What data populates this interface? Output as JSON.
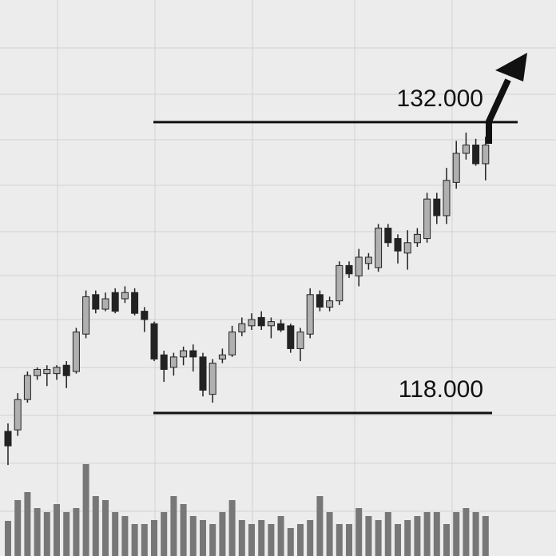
{
  "chart_data": {
    "type": "candlestick",
    "open": [
      117.12,
      117.19,
      118.65,
      119.8,
      119.9,
      119.9,
      120.3,
      120.0,
      121.8,
      123.7,
      123.0,
      123.8,
      123.5,
      123.8,
      122.9,
      122.3,
      120.8,
      120.2,
      120.7,
      121.0,
      120.7,
      118.9,
      120.6,
      120.8,
      121.9,
      122.2,
      122.6,
      122.2,
      122.3,
      122.2,
      121.1,
      121.8,
      123.7,
      123.1,
      123.4,
      125.1,
      124.6,
      125.2,
      125.0,
      126.9,
      126.4,
      125.7,
      126.2,
      126.4,
      128.3,
      127.5,
      129.1,
      130.5,
      130.9,
      130.0
    ],
    "high": [
      117.5,
      118.96,
      120.0,
      120.2,
      120.3,
      120.3,
      120.5,
      122.1,
      123.9,
      123.9,
      123.8,
      124.0,
      124.1,
      124.0,
      123.1,
      122.4,
      121.0,
      120.9,
      121.2,
      121.3,
      120.9,
      120.6,
      121.1,
      122.2,
      122.6,
      122.8,
      122.9,
      122.6,
      122.5,
      122.3,
      122.1,
      124.0,
      123.9,
      123.6,
      125.3,
      125.3,
      125.9,
      125.7,
      127.1,
      127.1,
      126.6,
      126.8,
      126.9,
      128.6,
      128.6,
      129.8,
      131.1,
      131.5,
      131.2,
      131.3
    ],
    "low": [
      115.5,
      116.9,
      118.5,
      119.6,
      119.3,
      119.6,
      119.2,
      119.9,
      121.6,
      122.8,
      122.9,
      122.8,
      123.3,
      122.7,
      121.9,
      120.5,
      119.5,
      119.8,
      120.3,
      120.0,
      118.8,
      118.5,
      120.4,
      120.7,
      121.7,
      122.0,
      122.0,
      121.6,
      121.9,
      120.9,
      120.5,
      121.6,
      122.9,
      122.9,
      123.2,
      124.5,
      124.1,
      124.9,
      124.8,
      126.0,
      125.2,
      124.9,
      126.0,
      126.2,
      127.1,
      127.1,
      128.8,
      130.2,
      129.9,
      129.2
    ],
    "close": [
      116.42,
      118.65,
      119.81,
      120.1,
      120.1,
      120.2,
      119.8,
      121.9,
      123.6,
      123.0,
      123.5,
      122.9,
      123.8,
      122.8,
      122.5,
      120.6,
      120.1,
      120.7,
      121.0,
      120.7,
      119.1,
      120.4,
      120.8,
      121.9,
      122.3,
      122.5,
      122.2,
      122.4,
      122.0,
      121.1,
      121.9,
      123.7,
      123.1,
      123.4,
      125.1,
      124.7,
      125.5,
      125.5,
      126.9,
      126.2,
      125.8,
      126.2,
      126.6,
      128.3,
      127.5,
      129.2,
      130.5,
      130.9,
      130.0,
      130.9
    ],
    "volume": [
      44,
      70,
      80,
      60,
      55,
      65,
      55,
      60,
      115,
      75,
      70,
      55,
      50,
      40,
      40,
      45,
      55,
      75,
      65,
      50,
      45,
      40,
      55,
      70,
      45,
      40,
      45,
      40,
      50,
      35,
      40,
      45,
      75,
      55,
      40,
      40,
      60,
      50,
      45,
      55,
      40,
      45,
      50,
      55,
      55,
      40,
      55,
      60,
      55,
      50
    ],
    "ylim": [
      111.12,
      137.88
    ],
    "y2lim": [
      0,
      150
    ],
    "levels": [
      {
        "value": 132,
        "label": "132.000"
      },
      {
        "value": 118,
        "label": "118.000"
      }
    ]
  }
}
